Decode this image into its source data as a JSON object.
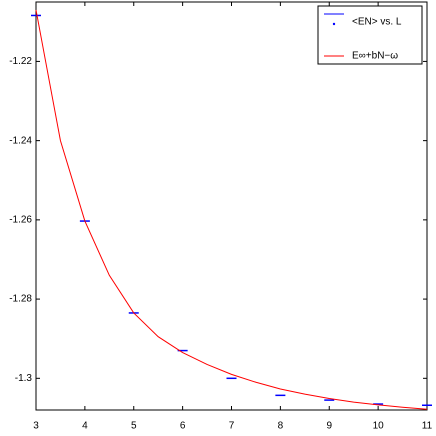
{
  "chart_data": {
    "type": "scatter-fit",
    "xlim": [
      3,
      11
    ],
    "xticks": [
      3,
      4,
      5,
      6,
      7,
      8,
      9,
      10,
      11
    ],
    "ylim": [
      -1.308,
      -1.205
    ],
    "yticks": [
      -1.22,
      -1.24,
      -1.26,
      -1.28,
      -1.3
    ],
    "series": [
      {
        "name": "<EN> vs. L",
        "color": "#0000ff",
        "kind": "points",
        "x": [
          3,
          4,
          5,
          6,
          7,
          8,
          9,
          10,
          11
        ],
        "values": [
          -1.2084,
          -1.2603,
          -1.2835,
          -1.293,
          -1.3,
          -1.3043,
          -1.3055,
          -1.3065,
          -1.3068
        ]
      },
      {
        "name": "E∞+bN−ω",
        "color": "#ff0000",
        "kind": "line",
        "x": [
          3,
          3.5,
          4,
          4.5,
          5,
          5.5,
          6,
          6.5,
          7,
          7.5,
          8,
          8.5,
          9,
          9.5,
          10,
          10.5,
          11
        ],
        "values": [
          -1.207,
          -1.24,
          -1.2603,
          -1.274,
          -1.2835,
          -1.2895,
          -1.2935,
          -1.2965,
          -1.299,
          -1.301,
          -1.3027,
          -1.304,
          -1.3051,
          -1.306,
          -1.3067,
          -1.3073,
          -1.3078
        ]
      }
    ]
  }
}
